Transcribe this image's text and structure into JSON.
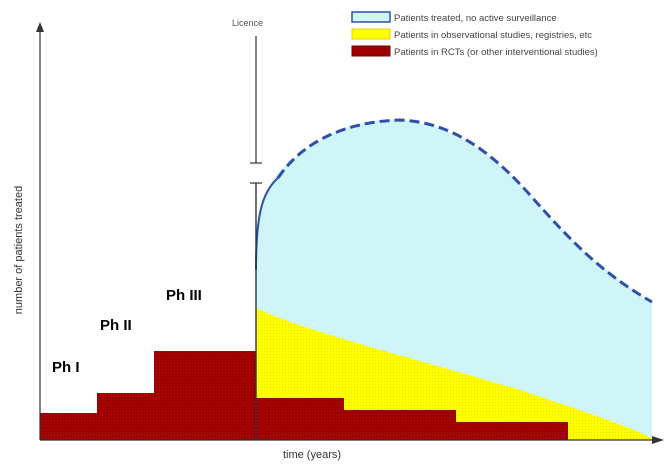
{
  "axes": {
    "y_label": "number of patients treated",
    "x_label": "time (years)"
  },
  "licence": {
    "label": "Licence"
  },
  "legend": {
    "items": [
      {
        "label": "Patients treated, no active surveillance",
        "color": "#cff5f8",
        "border": "#2f4fa8"
      },
      {
        "label": "Patients in observational studies, registries, etc",
        "color": "#ffff00",
        "border": "#e0d200"
      },
      {
        "label": "Patients in RCTs (or other interventional studies)",
        "color": "#9e0000",
        "border": "#7a0000"
      }
    ]
  },
  "phases": [
    {
      "label": "Ph I"
    },
    {
      "label": "Ph II"
    },
    {
      "label": "Ph III"
    }
  ],
  "colors": {
    "surveillance_fill": "#cff5f8",
    "surveillance_outline": "#2f4fa8",
    "observational_fill": "#ffff00",
    "rct_fill": "#9e0000",
    "axis": "#333333"
  }
}
